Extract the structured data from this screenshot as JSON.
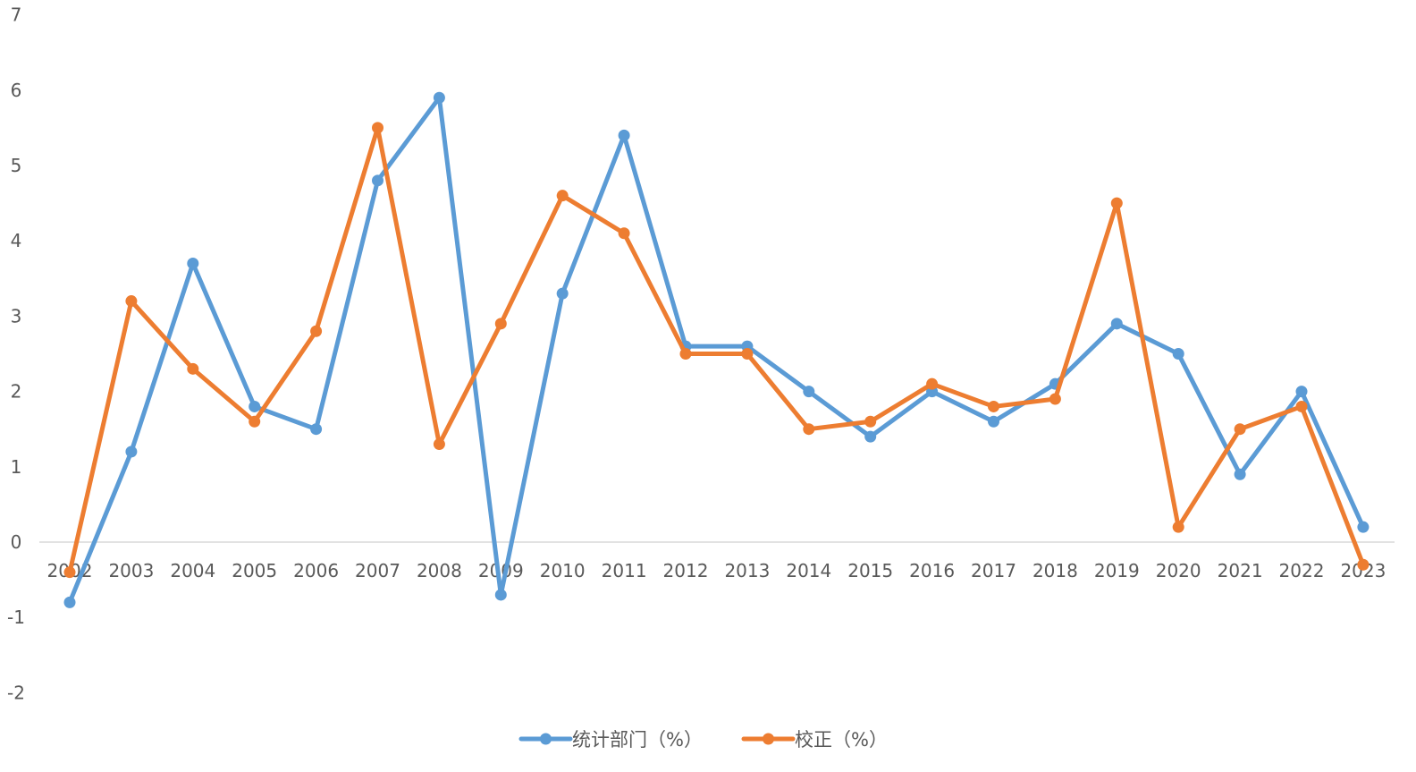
{
  "chart_data": {
    "type": "line",
    "categories": [
      "2002",
      "2003",
      "2004",
      "2005",
      "2006",
      "2007",
      "2008",
      "2009",
      "2010",
      "2011",
      "2012",
      "2013",
      "2014",
      "2015",
      "2016",
      "2017",
      "2018",
      "2019",
      "2020",
      "2021",
      "2022",
      "2023"
    ],
    "series": [
      {
        "name": "统计部门（%）",
        "color": "#5b9bd5",
        "values": [
          -0.8,
          1.2,
          3.7,
          1.8,
          1.5,
          4.8,
          5.9,
          -0.7,
          3.3,
          5.4,
          2.6,
          2.6,
          2.0,
          1.4,
          2.0,
          1.6,
          2.1,
          2.9,
          2.5,
          0.9,
          2.0,
          0.2
        ]
      },
      {
        "name": "校正（%）",
        "color": "#ed7d31",
        "values": [
          -0.4,
          3.2,
          2.3,
          1.6,
          2.8,
          5.5,
          1.3,
          2.9,
          4.6,
          4.1,
          2.5,
          2.5,
          1.5,
          1.6,
          2.1,
          1.8,
          1.9,
          4.5,
          0.2,
          1.5,
          1.8,
          -0.3
        ]
      }
    ],
    "ylim": [
      -2,
      7
    ],
    "yticks": [
      "-2",
      "-1",
      "0",
      "1",
      "2",
      "3",
      "4",
      "5",
      "6",
      "7"
    ],
    "title": "",
    "xlabel": "",
    "ylabel": "",
    "grid": false,
    "legend_position": "bottom-center",
    "axis_color": "#d9d9d9",
    "text_color": "#595959"
  }
}
